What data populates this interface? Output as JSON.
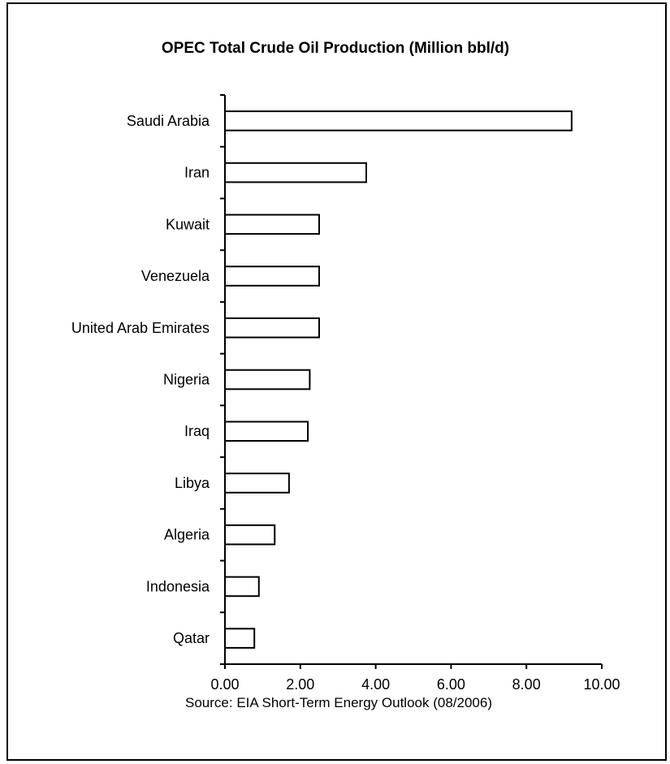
{
  "chart_data": {
    "type": "bar",
    "orientation": "horizontal",
    "title": "OPEC Total Crude Oil Production (Million bbl/d)",
    "categories": [
      "Saudi Arabia",
      "Iran",
      "Kuwait",
      "Venezuela",
      "United Arab Emirates",
      "Nigeria",
      "Iraq",
      "Libya",
      "Algeria",
      "Indonesia",
      "Qatar"
    ],
    "values": [
      9.2,
      3.75,
      2.5,
      2.5,
      2.5,
      2.25,
      2.2,
      1.7,
      1.32,
      0.9,
      0.78
    ],
    "xlim": [
      0,
      10
    ],
    "xticks": [
      "0.00",
      "2.00",
      "4.00",
      "6.00",
      "8.00",
      "10.00"
    ],
    "xlabel": "",
    "ylabel": "",
    "grid": false,
    "legend": "none",
    "bar_fill": "#ffffff",
    "bar_stroke": "#000000",
    "source": "Source: EIA Short-Term Energy Outlook (08/2006)"
  }
}
